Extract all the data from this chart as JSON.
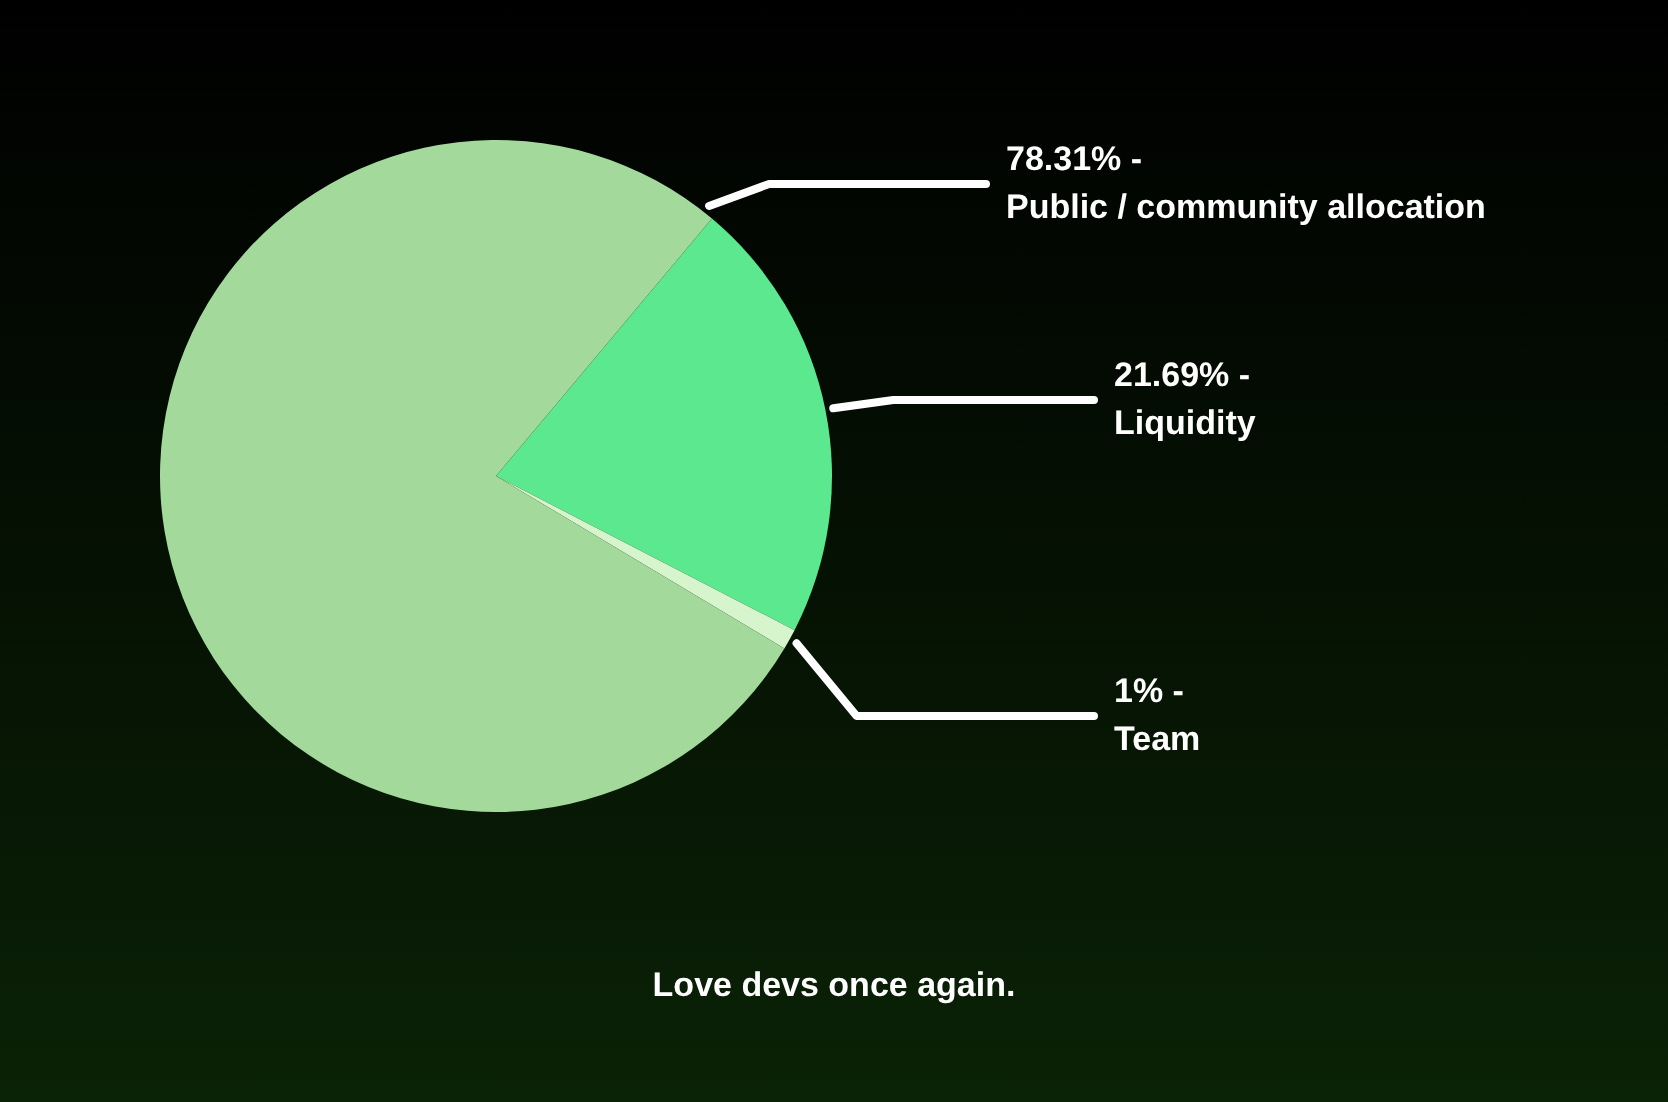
{
  "chart_data": {
    "type": "pie",
    "categories": [
      "Liquidity",
      "Team",
      "Public / community allocation"
    ],
    "values": [
      21.69,
      1,
      78.31
    ],
    "value_labels": [
      "21.69% -",
      "1% -",
      "78.31% -"
    ],
    "colors": [
      "#5be88f",
      "#d6f5cc",
      "#a3d99b"
    ],
    "annotations": [
      "Love devs once again."
    ]
  }
}
